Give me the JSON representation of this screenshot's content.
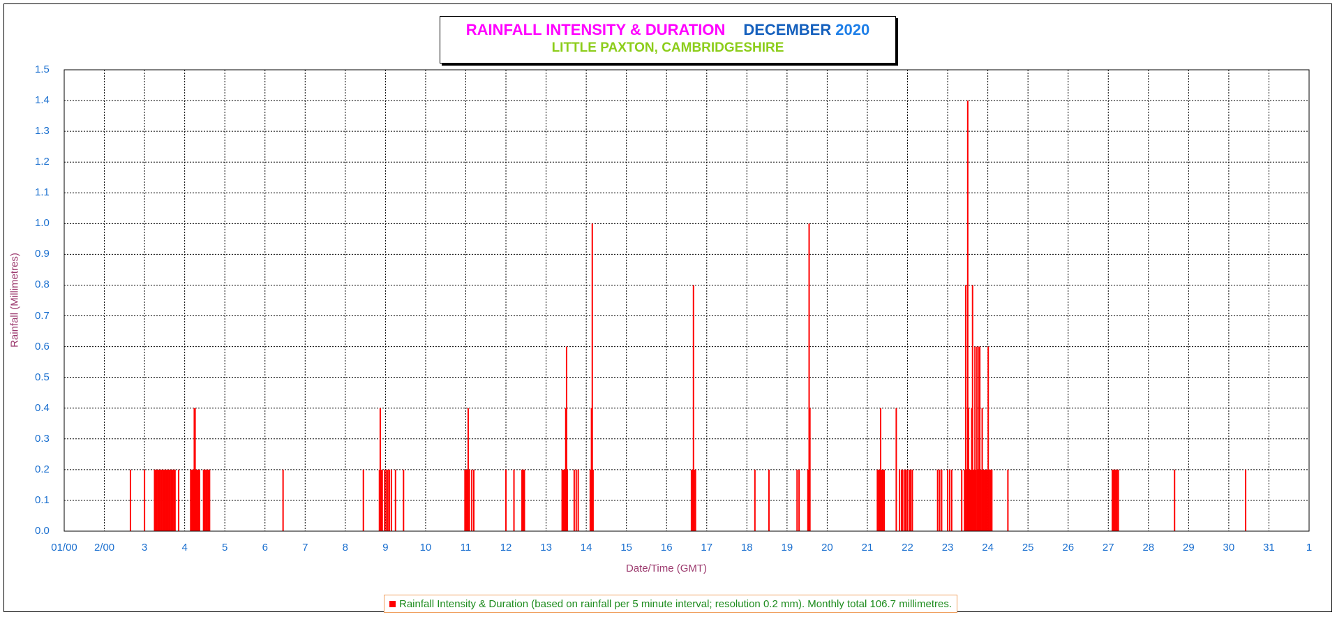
{
  "chart_data": {
    "type": "bar",
    "title": "RAINFALL INTENSITY & DURATION",
    "title_month": "DECEMBER",
    "title_year": "2020",
    "subtitle": "LITTLE PAXTON, CAMBRIDGESHIRE",
    "xlabel": "Date/Time (GMT)",
    "ylabel": "Rainfall (Millimetres)",
    "ylim": [
      0,
      1.5
    ],
    "xlim": [
      1,
      32
    ],
    "grid": true,
    "legend_position": "bottom",
    "y_ticks": [
      "0.0",
      "0.1",
      "0.2",
      "0.3",
      "0.4",
      "0.5",
      "0.6",
      "0.7",
      "0.8",
      "0.9",
      "1.0",
      "1.1",
      "1.2",
      "1.3",
      "1.4",
      "1.5"
    ],
    "x_ticks": [
      "01/00",
      "2/00",
      "3",
      "4",
      "5",
      "6",
      "7",
      "8",
      "9",
      "10",
      "11",
      "12",
      "13",
      "14",
      "15",
      "16",
      "17",
      "18",
      "19",
      "20",
      "21",
      "22",
      "23",
      "24",
      "25",
      "26",
      "27",
      "28",
      "29",
      "30",
      "31",
      "1"
    ],
    "series": [
      {
        "name": "Rainfall Intensity & Duration (based on rainfall per 5 minute interval; resolution 0.2 mm). Monthly total 106.7 millimetres.",
        "color": "#ff0000",
        "points": [
          [
            2.65,
            0.2
          ],
          [
            3.0,
            0.2
          ],
          [
            3.25,
            0.2
          ],
          [
            3.28,
            0.2
          ],
          [
            3.31,
            0.2
          ],
          [
            3.34,
            0.2
          ],
          [
            3.37,
            0.2
          ],
          [
            3.4,
            0.2
          ],
          [
            3.43,
            0.2
          ],
          [
            3.46,
            0.2
          ],
          [
            3.49,
            0.2
          ],
          [
            3.52,
            0.2
          ],
          [
            3.55,
            0.2
          ],
          [
            3.58,
            0.2
          ],
          [
            3.61,
            0.2
          ],
          [
            3.64,
            0.2
          ],
          [
            3.67,
            0.2
          ],
          [
            3.7,
            0.2
          ],
          [
            3.73,
            0.2
          ],
          [
            3.76,
            0.2
          ],
          [
            3.85,
            0.2
          ],
          [
            4.15,
            0.2
          ],
          [
            4.18,
            0.2
          ],
          [
            4.21,
            0.2
          ],
          [
            4.24,
            0.4
          ],
          [
            4.26,
            0.4
          ],
          [
            4.28,
            0.2
          ],
          [
            4.31,
            0.2
          ],
          [
            4.34,
            0.2
          ],
          [
            4.37,
            0.2
          ],
          [
            4.47,
            0.2
          ],
          [
            4.5,
            0.2
          ],
          [
            4.53,
            0.2
          ],
          [
            4.56,
            0.2
          ],
          [
            4.59,
            0.2
          ],
          [
            4.62,
            0.2
          ],
          [
            6.45,
            0.2
          ],
          [
            8.45,
            0.2
          ],
          [
            8.85,
            0.2
          ],
          [
            8.87,
            0.4
          ],
          [
            8.89,
            0.2
          ],
          [
            8.92,
            0.2
          ],
          [
            8.98,
            0.2
          ],
          [
            9.02,
            0.2
          ],
          [
            9.06,
            0.2
          ],
          [
            9.1,
            0.2
          ],
          [
            9.15,
            0.2
          ],
          [
            9.25,
            0.2
          ],
          [
            9.45,
            0.2
          ],
          [
            10.98,
            0.2
          ],
          [
            11.01,
            0.2
          ],
          [
            11.03,
            0.2
          ],
          [
            11.06,
            0.4
          ],
          [
            11.09,
            0.2
          ],
          [
            11.15,
            0.2
          ],
          [
            11.2,
            0.2
          ],
          [
            12.0,
            0.2
          ],
          [
            12.2,
            0.2
          ],
          [
            12.4,
            0.2
          ],
          [
            12.43,
            0.2
          ],
          [
            12.46,
            0.2
          ],
          [
            13.4,
            0.2
          ],
          [
            13.43,
            0.2
          ],
          [
            13.46,
            0.2
          ],
          [
            13.49,
            0.4
          ],
          [
            13.51,
            0.6
          ],
          [
            13.53,
            0.2
          ],
          [
            13.7,
            0.2
          ],
          [
            13.75,
            0.2
          ],
          [
            13.8,
            0.2
          ],
          [
            14.1,
            0.2
          ],
          [
            14.13,
            0.4
          ],
          [
            14.15,
            1.0
          ],
          [
            14.17,
            0.2
          ],
          [
            16.62,
            0.2
          ],
          [
            16.65,
            0.2
          ],
          [
            16.67,
            0.8
          ],
          [
            16.69,
            0.2
          ],
          [
            16.72,
            0.2
          ],
          [
            18.2,
            0.2
          ],
          [
            18.55,
            0.2
          ],
          [
            19.25,
            0.2
          ],
          [
            19.3,
            0.2
          ],
          [
            19.52,
            0.2
          ],
          [
            19.55,
            1.0
          ],
          [
            19.57,
            0.4
          ],
          [
            21.25,
            0.2
          ],
          [
            21.28,
            0.2
          ],
          [
            21.31,
            0.2
          ],
          [
            21.33,
            0.4
          ],
          [
            21.36,
            0.2
          ],
          [
            21.39,
            0.2
          ],
          [
            21.42,
            0.2
          ],
          [
            21.72,
            0.4
          ],
          [
            21.8,
            0.2
          ],
          [
            21.85,
            0.2
          ],
          [
            21.88,
            0.2
          ],
          [
            21.93,
            0.2
          ],
          [
            21.96,
            0.2
          ],
          [
            22.0,
            0.2
          ],
          [
            22.05,
            0.2
          ],
          [
            22.08,
            0.2
          ],
          [
            22.12,
            0.2
          ],
          [
            22.75,
            0.2
          ],
          [
            22.8,
            0.2
          ],
          [
            22.85,
            0.2
          ],
          [
            23.0,
            0.2
          ],
          [
            23.05,
            0.2
          ],
          [
            23.1,
            0.2
          ],
          [
            23.35,
            0.2
          ],
          [
            23.42,
            0.2
          ],
          [
            23.45,
            0.8
          ],
          [
            23.48,
            0.2
          ],
          [
            23.5,
            1.4
          ],
          [
            23.52,
            0.4
          ],
          [
            23.55,
            0.2
          ],
          [
            23.58,
            0.2
          ],
          [
            23.6,
            0.4
          ],
          [
            23.62,
            0.8
          ],
          [
            23.64,
            0.2
          ],
          [
            23.66,
            0.2
          ],
          [
            23.68,
            0.6
          ],
          [
            23.7,
            0.2
          ],
          [
            23.73,
            0.6
          ],
          [
            23.76,
            0.2
          ],
          [
            23.78,
            0.6
          ],
          [
            23.8,
            0.6
          ],
          [
            23.83,
            0.2
          ],
          [
            23.86,
            0.4
          ],
          [
            23.89,
            0.2
          ],
          [
            23.92,
            0.2
          ],
          [
            23.95,
            0.2
          ],
          [
            23.98,
            0.2
          ],
          [
            24.01,
            0.6
          ],
          [
            24.04,
            0.2
          ],
          [
            24.07,
            0.2
          ],
          [
            24.1,
            0.2
          ],
          [
            24.5,
            0.2
          ],
          [
            27.1,
            0.2
          ],
          [
            27.13,
            0.2
          ],
          [
            27.16,
            0.2
          ],
          [
            27.19,
            0.2
          ],
          [
            27.22,
            0.2
          ],
          [
            27.25,
            0.2
          ],
          [
            28.65,
            0.2
          ],
          [
            30.42,
            0.2
          ]
        ]
      }
    ]
  }
}
